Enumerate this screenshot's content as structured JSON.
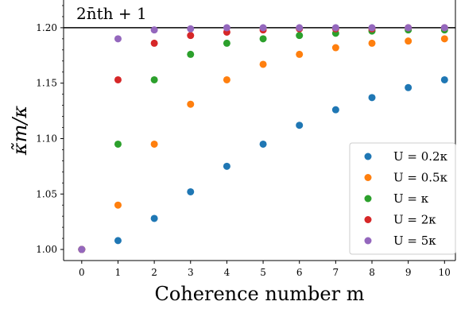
{
  "chart_data": {
    "type": "scatter",
    "title": "",
    "xlabel": "Coherence number m",
    "ylabel": "κ̃m/κ",
    "xlim": [
      -0.5,
      10.3
    ],
    "ylim": [
      0.99,
      1.225
    ],
    "x_ticks": [
      0,
      1,
      2,
      3,
      4,
      5,
      6,
      7,
      8,
      9,
      10
    ],
    "y_ticks": [
      1.0,
      1.05,
      1.1,
      1.15,
      1.2
    ],
    "x_tick_labels": [
      "0",
      "1",
      "2",
      "3",
      "4",
      "5",
      "6",
      "7",
      "8",
      "9",
      "10"
    ],
    "y_tick_labels": [
      "1.00",
      "1.05",
      "1.10",
      "1.15",
      "1.20"
    ],
    "grid": false,
    "legend_position": "lower-right",
    "reference_line": {
      "y": 1.2,
      "label": "2n̄th + 1"
    },
    "x": [
      0,
      1,
      2,
      3,
      4,
      5,
      6,
      7,
      8,
      9,
      10
    ],
    "series": [
      {
        "name": "U = 0.2κ",
        "color": "#1f77b4",
        "values": [
          1.0,
          1.008,
          1.028,
          1.052,
          1.075,
          1.095,
          1.112,
          1.126,
          1.137,
          1.146,
          1.153
        ]
      },
      {
        "name": "U = 0.5κ",
        "color": "#ff7f0e",
        "values": [
          1.0,
          1.04,
          1.095,
          1.131,
          1.153,
          1.167,
          1.176,
          1.182,
          1.186,
          1.188,
          1.19
        ]
      },
      {
        "name": "U = κ",
        "color": "#2ca02c",
        "values": [
          1.0,
          1.095,
          1.153,
          1.176,
          1.186,
          1.19,
          1.193,
          1.195,
          1.197,
          1.198,
          1.198
        ]
      },
      {
        "name": "U = 2κ",
        "color": "#d62728",
        "values": [
          1.0,
          1.153,
          1.186,
          1.193,
          1.196,
          1.198,
          1.199,
          1.199,
          1.199,
          1.2,
          1.2
        ]
      },
      {
        "name": "U = 5κ",
        "color": "#9467bd",
        "values": [
          1.0,
          1.19,
          1.198,
          1.199,
          1.2,
          1.2,
          1.2,
          1.2,
          1.2,
          1.2,
          1.2
        ]
      }
    ]
  }
}
